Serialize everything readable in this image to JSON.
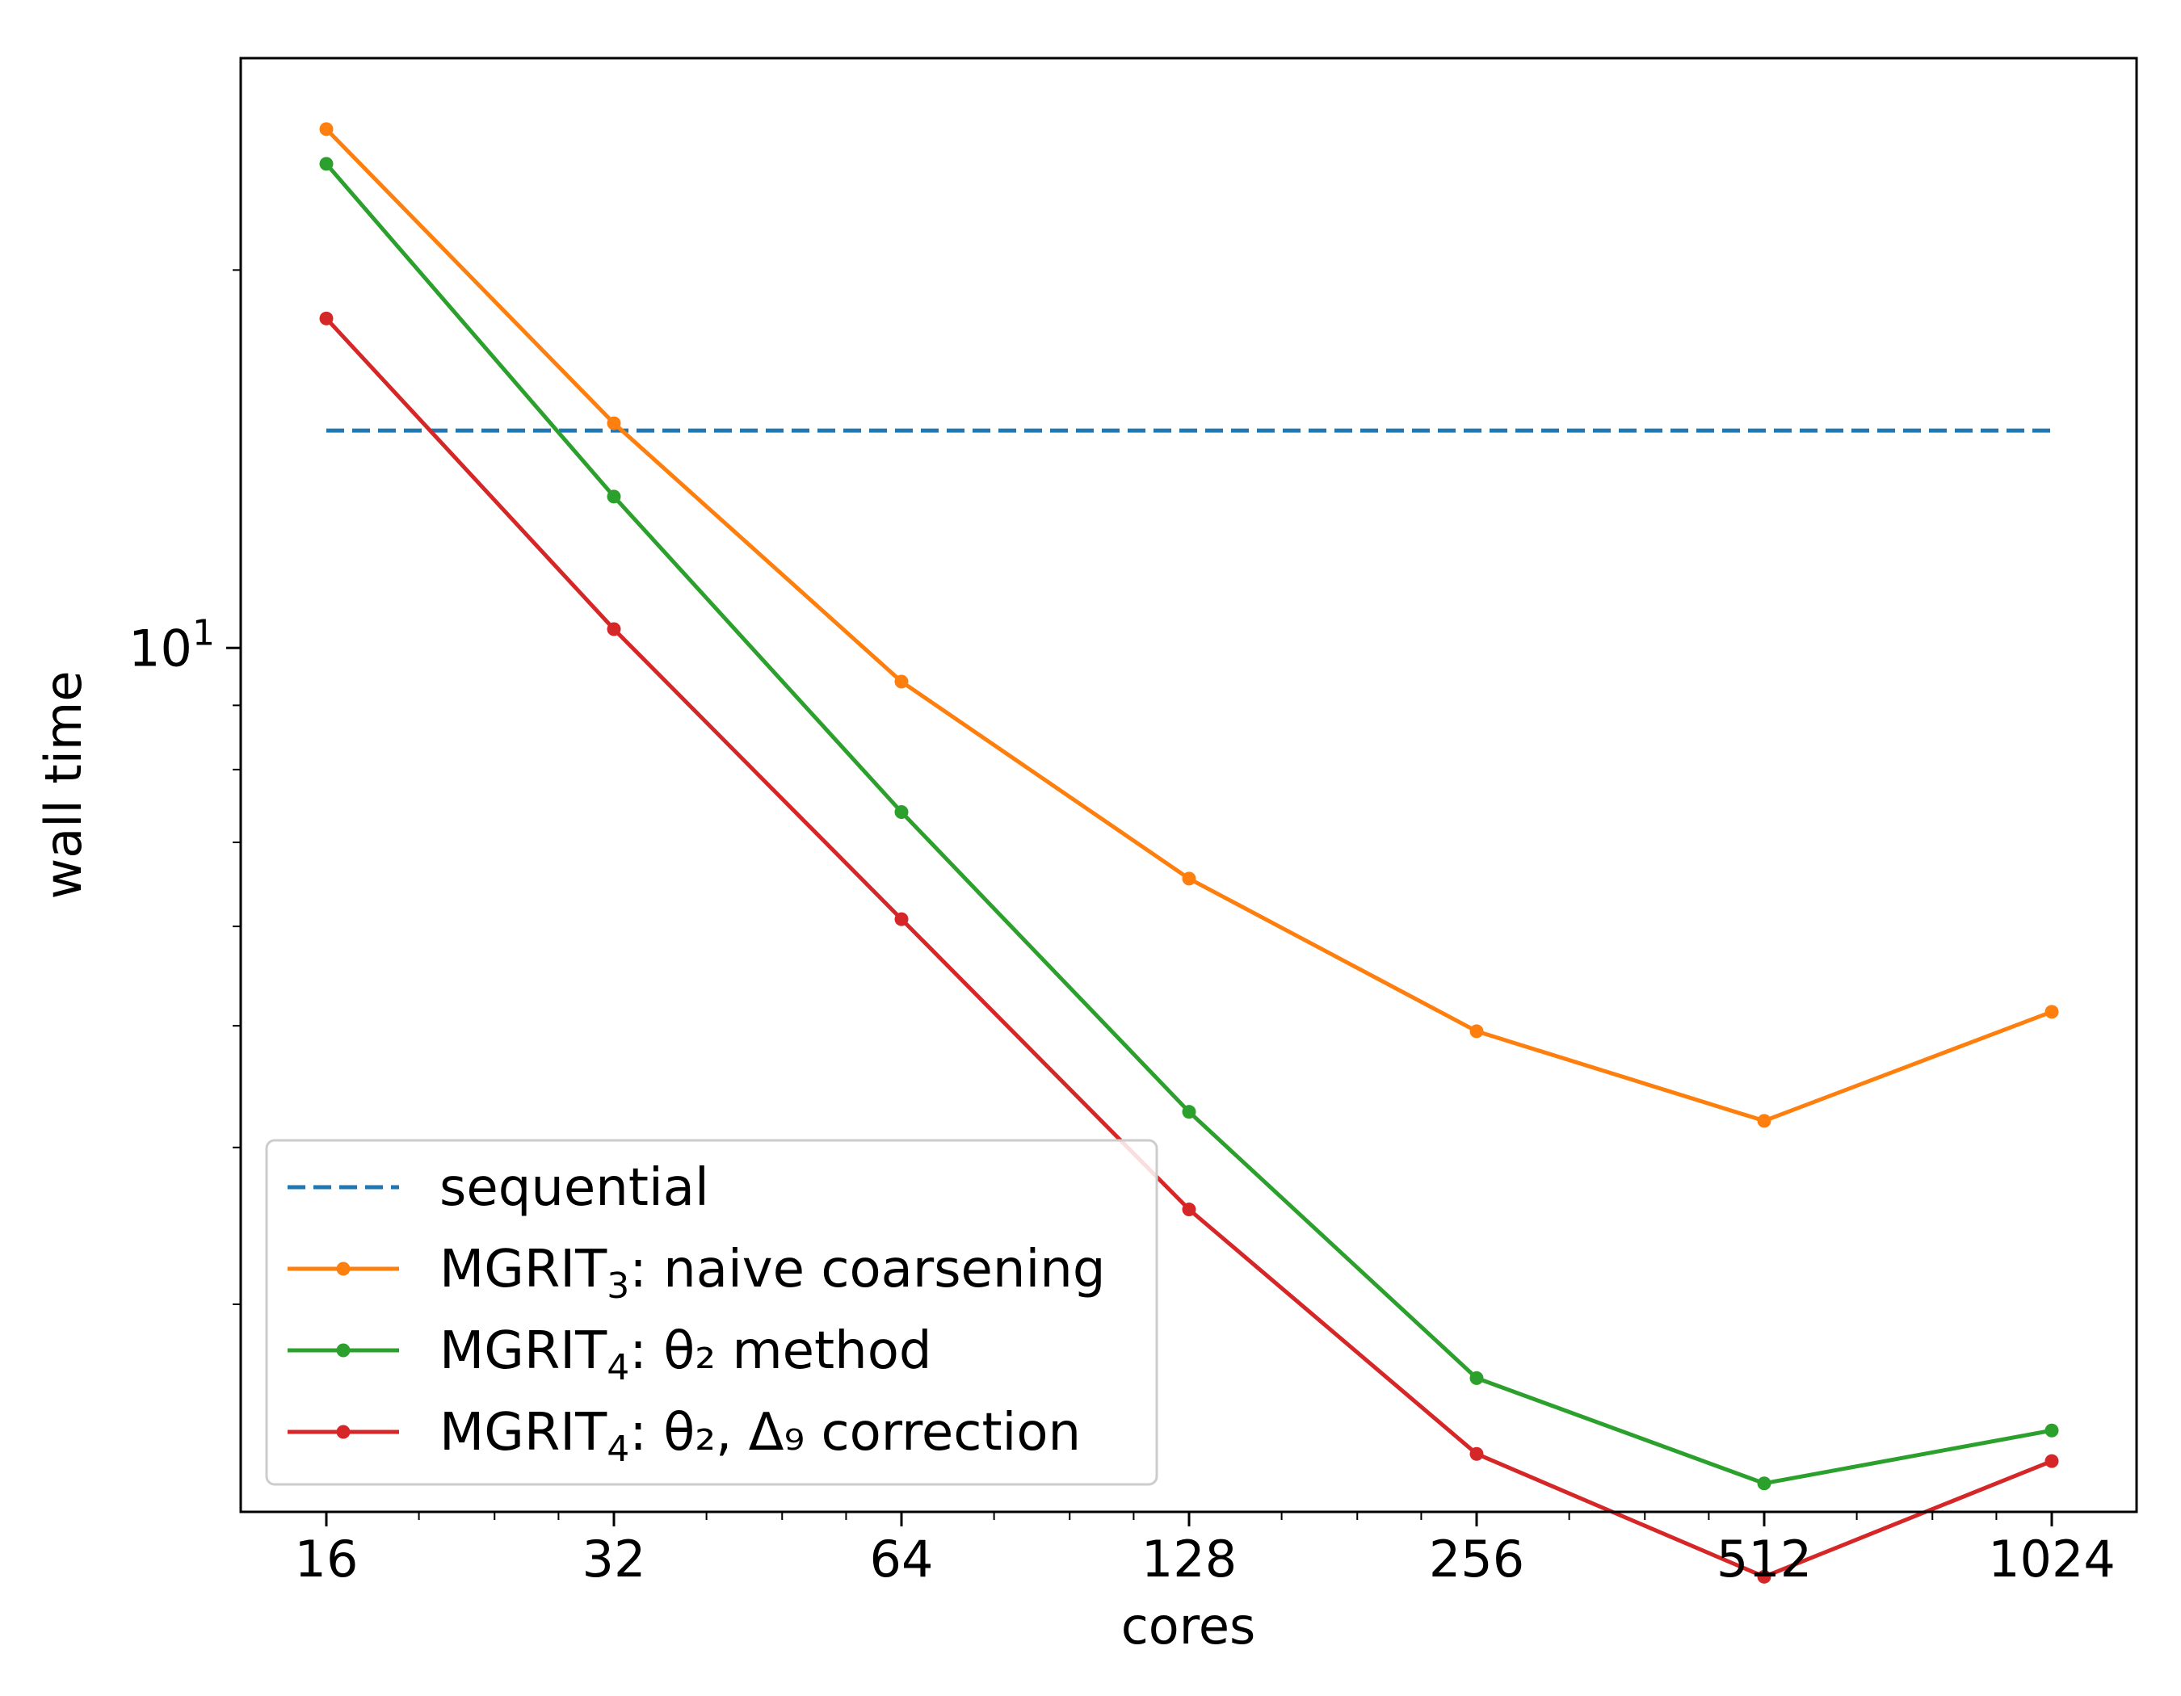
{
  "chart_data": {
    "type": "line",
    "title": "",
    "xlabel": "cores",
    "ylabel": "wall time",
    "x_scale": "log2",
    "y_scale": "log10",
    "x": [
      16,
      32,
      64,
      128,
      256,
      512,
      1024
    ],
    "x_tick_labels": [
      "16",
      "32",
      "64",
      "128",
      "256",
      "512",
      "1024"
    ],
    "y_tick_label": {
      "base": "10",
      "exponent": "1",
      "value": 10
    },
    "ylim": [
      2.05,
      29.5
    ],
    "grid": false,
    "legend_position": "lower-left",
    "series": [
      {
        "name": "sequential",
        "legend_base": "sequential",
        "legend_sub": "",
        "legend_rest": "",
        "color": "#1f77b4",
        "style": "dashed",
        "markers": false,
        "values": [
          14.9,
          14.9,
          14.9,
          14.9,
          14.9,
          14.9,
          14.9
        ]
      },
      {
        "name": "MGRIT3: naive coarsening",
        "legend_base": "MGRIT",
        "legend_sub": "3",
        "legend_rest": ": naive coarsening",
        "color": "#ff7f0e",
        "style": "solid",
        "markers": true,
        "values": [
          25.9,
          15.1,
          9.4,
          6.55,
          4.95,
          4.2,
          5.13
        ]
      },
      {
        "name": "MGRIT4: θ2 method",
        "legend_base": "MGRIT",
        "legend_sub": "4",
        "legend_rest": ": θ₂ method",
        "color": "#2ca02c",
        "style": "solid",
        "markers": true,
        "values": [
          24.3,
          13.2,
          7.4,
          4.27,
          2.62,
          2.16,
          2.38
        ]
      },
      {
        "name": "MGRIT4: θ2, Δ9 correction",
        "legend_base": "MGRIT",
        "legend_sub": "4",
        "legend_rest": ": θ₂, Δ₉ correction",
        "color": "#d62728",
        "style": "solid",
        "markers": true,
        "values": [
          18.3,
          10.35,
          6.08,
          3.57,
          2.28,
          1.82,
          2.25
        ]
      }
    ]
  }
}
